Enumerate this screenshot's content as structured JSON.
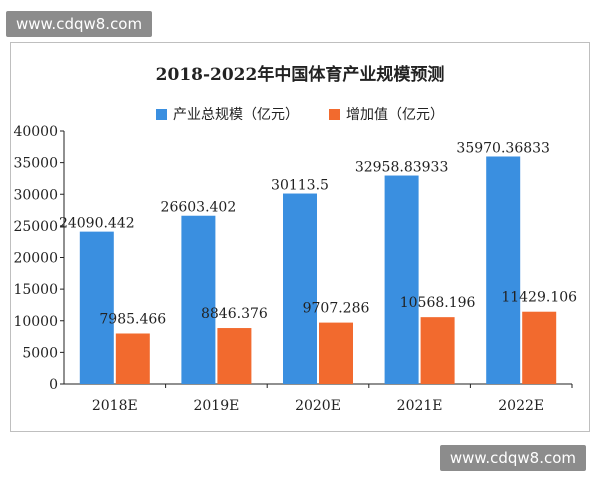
{
  "watermark": {
    "site": "www.cdqw8.com"
  },
  "chart_data": {
    "type": "bar",
    "title": "2018-2022年中国体育产业规模预测",
    "categories": [
      "2018E",
      "2019E",
      "2020E",
      "2021E",
      "2022E"
    ],
    "series": [
      {
        "name": "产业总规模（亿元）",
        "color": "#3a8fe0",
        "values": [
          24090.442,
          26603.402,
          30113.5,
          32958.83933,
          35970.36833
        ],
        "labels": [
          "24090.442",
          "26603.402",
          "30113.5",
          "32958.83933",
          "35970.36833"
        ]
      },
      {
        "name": "增加值（亿元）",
        "color": "#f26a2e",
        "values": [
          7985.466,
          8846.376,
          9707.286,
          10568.196,
          11429.106
        ],
        "labels": [
          "7985.466",
          "8846.376",
          "9707.286",
          "10568.196",
          "11429.106"
        ]
      }
    ],
    "ylim": [
      0,
      40000
    ],
    "yticks": [
      0,
      5000,
      10000,
      15000,
      20000,
      25000,
      30000,
      35000,
      40000
    ],
    "ytick_labels": [
      "0",
      "5000",
      "10000",
      "15000",
      "20000",
      "25000",
      "30000",
      "35000",
      "40000"
    ],
    "xlabel": "",
    "ylabel": "",
    "grid": false,
    "legend_position": "top"
  }
}
